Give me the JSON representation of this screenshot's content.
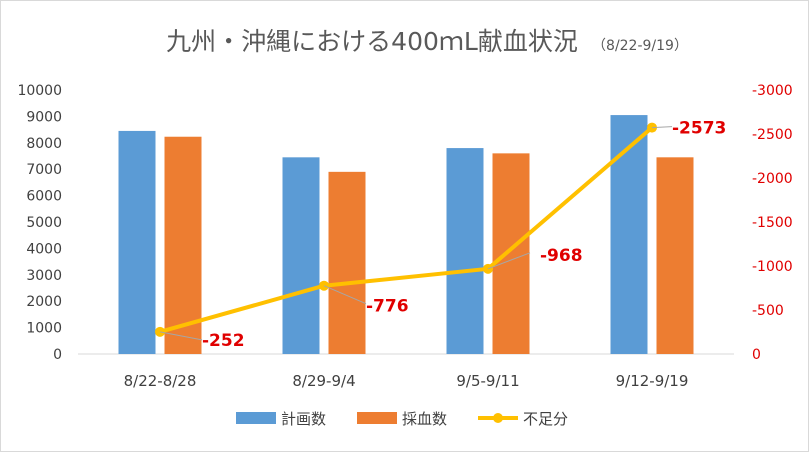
{
  "chart_data": {
    "type": "bar",
    "title": "九州・沖縄における400ｍL献血状況",
    "subtitle": "（8/22-9/19）",
    "categories": [
      "8/22-8/28",
      "8/29-9/4",
      "9/5-9/11",
      "9/12-9/19"
    ],
    "series": [
      {
        "name": "計画数",
        "type": "bar",
        "axis": "left",
        "color": "#5b9bd5",
        "values": [
          8450,
          7450,
          7800,
          9050
        ]
      },
      {
        "name": "採血数",
        "type": "bar",
        "axis": "left",
        "color": "#ed7d31",
        "values": [
          8230,
          6900,
          7600,
          7450
        ]
      },
      {
        "name": "不足分",
        "type": "line",
        "axis": "right",
        "color": "#ffc000",
        "values": [
          -252,
          -776,
          -968,
          -2573
        ],
        "labels": [
          "-252",
          "-776",
          "-968",
          "-2573"
        ]
      }
    ],
    "left_axis": {
      "min": 0,
      "max": 10000,
      "step": 1000,
      "ticks": [
        "0",
        "1000",
        "2000",
        "3000",
        "4000",
        "5000",
        "6000",
        "7000",
        "8000",
        "9000",
        "10000"
      ]
    },
    "right_axis": {
      "min": 0,
      "max": -3000,
      "step": -500,
      "reversed": true,
      "color": "#e00000",
      "ticks": [
        "0",
        "-500",
        "-1000",
        "-1500",
        "-2000",
        "-2500",
        "-3000"
      ]
    },
    "grid": false,
    "legend": "bottom",
    "data_label_color": "#e00000"
  }
}
